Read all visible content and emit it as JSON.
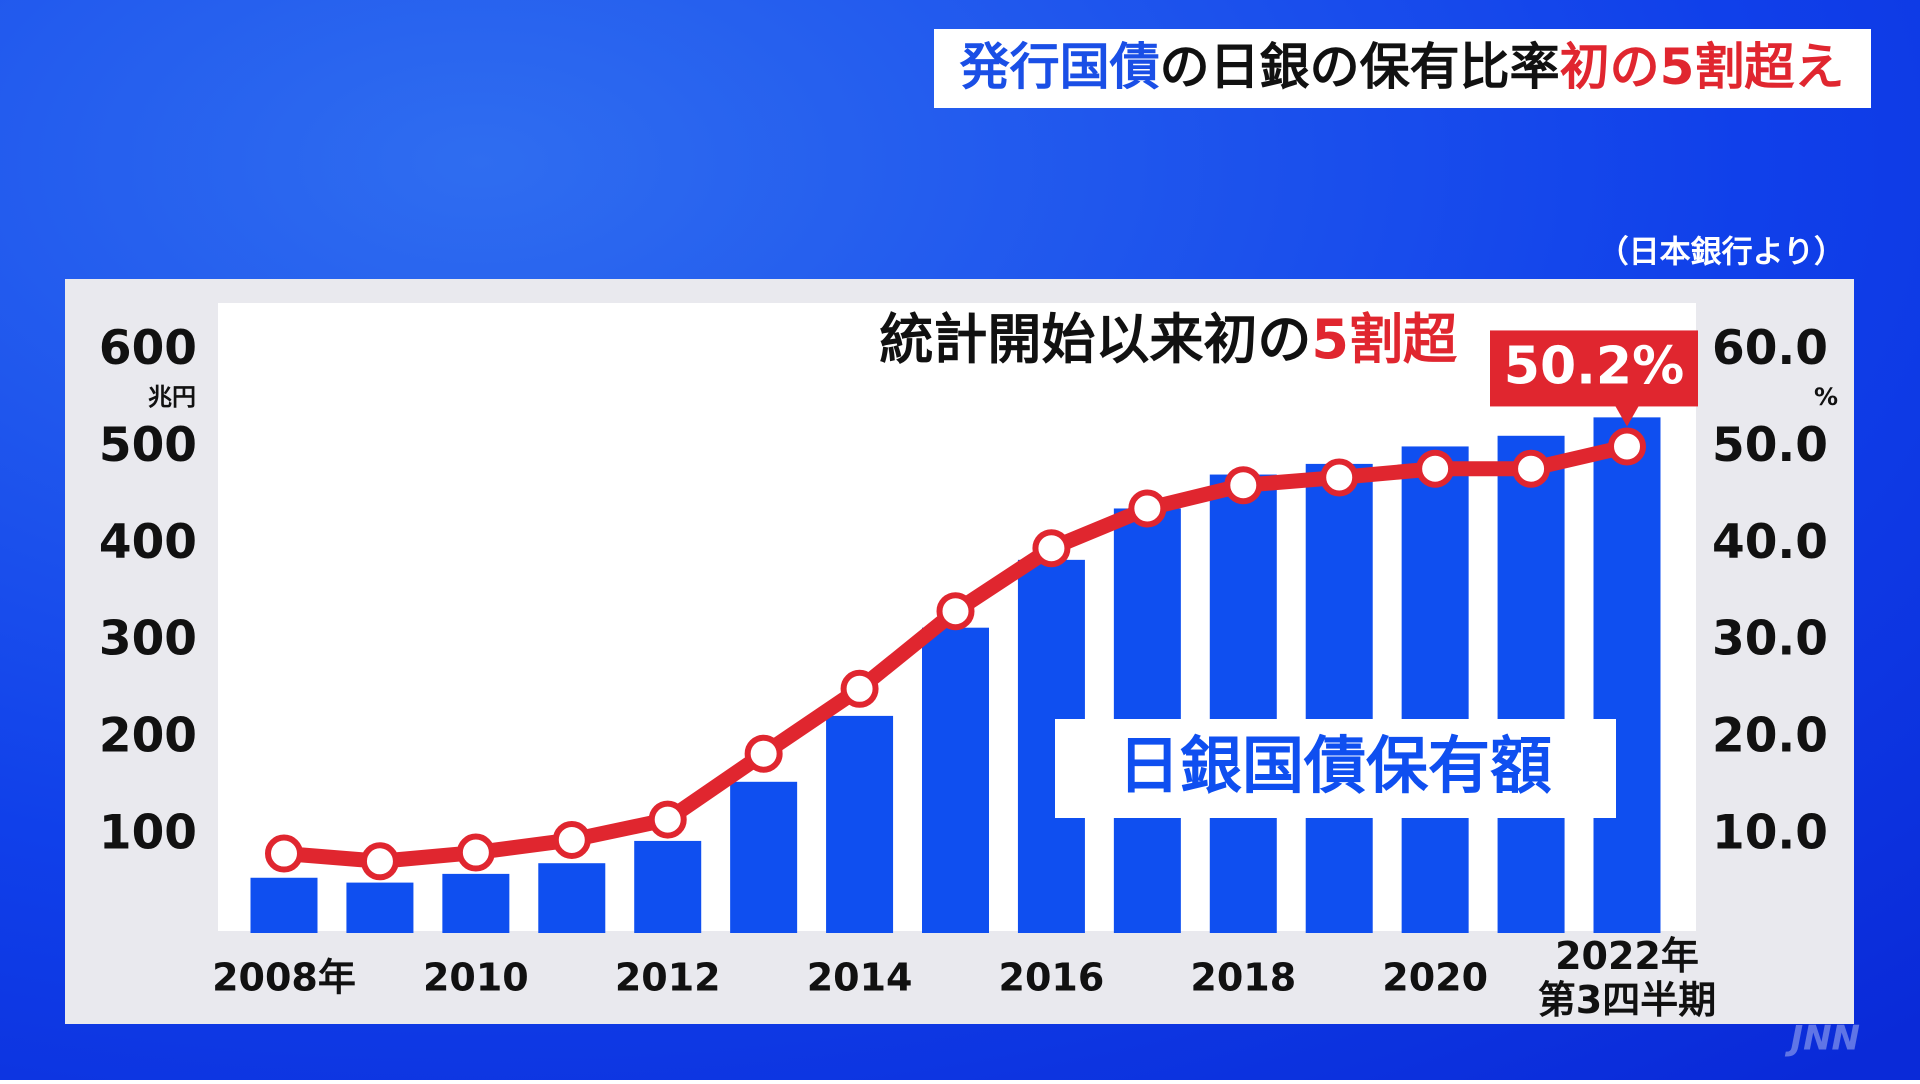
{
  "chart_data": {
    "type": "bar",
    "title_parts": [
      {
        "text": "発行国債",
        "color": "#1a4fe6"
      },
      {
        "text": "の日銀の保有比率",
        "color": "#111111"
      },
      {
        "text": "初の5割超え",
        "color": "#e0262f"
      }
    ],
    "source": "（日本銀行より）",
    "annotation_parts": [
      {
        "text": "統計開始以来初の",
        "color": "#111111"
      },
      {
        "text": "5割超",
        "color": "#e0262f"
      }
    ],
    "watermark": "JNN",
    "categories": [
      "2008年",
      null,
      "2010",
      null,
      "2012",
      null,
      "2014",
      null,
      "2016",
      null,
      "2018",
      null,
      "2020",
      null,
      "2022年\n第3四半期"
    ],
    "series": [
      {
        "name": "日銀国債保有額",
        "type": "bar",
        "color": "#0f4ff0",
        "values": [
          57,
          52,
          61,
          72,
          95,
          156,
          224,
          315,
          385,
          438,
          473,
          484,
          502,
          513,
          532
        ]
      },
      {
        "type": "line",
        "axis": "y2",
        "color": "#e0262f",
        "values": [
          8.2,
          7.4,
          8.3,
          9.6,
          11.7,
          18.5,
          25.2,
          33.2,
          39.7,
          43.8,
          46.2,
          47.0,
          47.9,
          47.9,
          50.2
        ],
        "value_labels": [
          null,
          null,
          null,
          null,
          null,
          null,
          null,
          null,
          null,
          null,
          null,
          null,
          null,
          null,
          "50.2%"
        ]
      }
    ],
    "ylim": [
      0,
      650
    ],
    "yticks": [
      100,
      200,
      300,
      400,
      500,
      600
    ],
    "y_unit": "兆円",
    "y2lim": [
      0,
      65
    ],
    "y2ticks": [
      {
        "value": 10,
        "label": "10.0"
      },
      {
        "value": 20,
        "label": "20.0"
      },
      {
        "value": 30,
        "label": "30.0"
      },
      {
        "value": 40,
        "label": "40.0"
      },
      {
        "value": 50,
        "label": "50.0"
      },
      {
        "value": 60,
        "label": "60.0"
      }
    ],
    "y2_unit": "%",
    "grid": false
  }
}
